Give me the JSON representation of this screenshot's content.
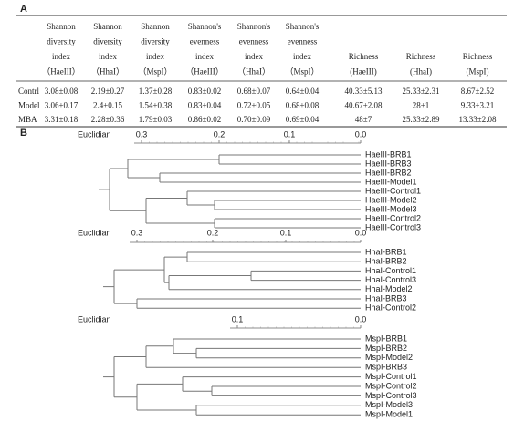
{
  "panel_a": {
    "label": "A",
    "header": [
      [
        "Shannon",
        "diversity",
        "index",
        "（HaeIII）"
      ],
      [
        "Shannon",
        "diversity",
        "index",
        "（HhaI）"
      ],
      [
        "Shannon",
        "diversity",
        "index",
        "（MspI）"
      ],
      [
        "Shannon's",
        "evenness",
        "index",
        "（HaeIII）"
      ],
      [
        "Shannon's",
        "evenness",
        "index",
        "（HhaI）"
      ],
      [
        "Shannon's",
        "evenness",
        "index",
        "（MspI）"
      ],
      [
        "Richness",
        "(HaeIII)"
      ],
      [
        "Richness",
        "(HhaI)"
      ],
      [
        "Richness",
        "(MspI)"
      ]
    ],
    "rows": [
      [
        "Contrl",
        "3.08±0.08",
        "2.19±0.27",
        "1.37±0.28",
        "0.83±0.02",
        "0.68±0.07",
        "0.64±0.04",
        "40.33±5.13",
        "25.33±2.31",
        "8.67±2.52"
      ],
      [
        "Model",
        "3.06±0.17",
        "2.4±0.15",
        "1.54±0.38",
        "0.83±0.04",
        "0.72±0.05",
        "0.68±0.08",
        "40.67±2.08",
        "28±1",
        "9.33±3.21"
      ],
      [
        "MBA",
        "3.31±0.18",
        "2.28±0.36",
        "1.79±0.03",
        "0.86±0.02",
        "0.70±0.09",
        "0.69±0.04",
        "48±7",
        "25.33±2.89",
        "13.33±2.08"
      ]
    ]
  },
  "panel_b": {
    "label": "B",
    "dendrograms": [
      {
        "axis_label": "Euclidian",
        "ticks": [
          "0.3",
          "0.2",
          "0.1",
          "0.0"
        ],
        "leaves": [
          "HaeIII-BRB1",
          "HaeIII-BRB3",
          "HaeIII-BRB2",
          "HaeIII-Model1",
          "HaeIII-Control1",
          "HaeIII-Model2",
          "HaeIII-Model3",
          "HaeIII-Control2",
          "HaeIII-Control3"
        ]
      },
      {
        "axis_label": "Euclidian",
        "ticks": [
          "0.3",
          "0.2",
          "0.1",
          "0.0"
        ],
        "leaves": [
          "HhaI-BRB1",
          "HhaI-BRB2",
          "HhaI-Control1",
          "HhaI-Control3",
          "HhaI-Model2",
          "HhaI-BRB3",
          "HhaI-Control2"
        ]
      },
      {
        "axis_label": "Euclidian",
        "ticks": [
          "0.1",
          "0.0"
        ],
        "leaves": [
          "MspI-BRB1",
          "MspI-BRB2",
          "MspI-Model2",
          "MspI-BRB3",
          "MspI-Control1",
          "MspI-Control2",
          "MspI-Control3",
          "MspI-Model3",
          "MspI-Model1"
        ]
      }
    ]
  }
}
